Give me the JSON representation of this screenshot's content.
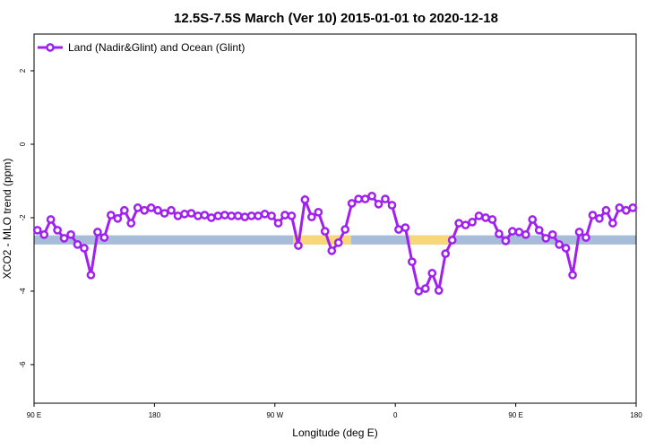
{
  "chart_data": {
    "type": "line",
    "title": "12.5S-7.5S March (Ver 10)   2015-01-01 to 2020-12-18",
    "x_label": "Longitude (deg E)",
    "y_label": "XCO2 - MLO trend (ppm)",
    "xlim": [
      90,
      540
    ],
    "ylim": [
      -7.05,
      3
    ],
    "xticks": [
      {
        "value": 90,
        "label": "90 E"
      },
      180,
      {
        "value": 270,
        "label": "90 W"
      },
      {
        "value": 360,
        "label": "0"
      },
      {
        "value": 450,
        "label": "90 E"
      },
      {
        "value": 540,
        "label": "180"
      }
    ],
    "yticks": [
      -6,
      -4,
      -2,
      0,
      2
    ],
    "legend_position": "top-left",
    "reference_band": {
      "range": [
        -2.48,
        -2.73
      ],
      "color": "#a7bcd8"
    },
    "highlight_ranges": {
      "color": "#f8d77a",
      "x": [
        [
          283.5,
          327
        ],
        [
          371,
          401
        ]
      ]
    },
    "series": [
      {
        "name": "Land (Nadir&Glint) and Ocean (Glint)",
        "color": "#a020f0",
        "x": [
          92.5,
          97.5,
          102.5,
          107.5,
          112.5,
          117.5,
          122.5,
          127.5,
          132.5,
          137.5,
          142.5,
          147.5,
          152.5,
          157.5,
          162.5,
          167.5,
          172.5,
          177.5,
          182.5,
          187.5,
          192.5,
          197.5,
          202.5,
          207.5,
          212.5,
          217.5,
          222.5,
          227.5,
          232.5,
          237.5,
          242.5,
          247.5,
          252.5,
          257.5,
          262.5,
          267.5,
          272.5,
          277.5,
          282.5,
          287.5,
          292.5,
          297.5,
          302.5,
          307.5,
          312.5,
          317.5,
          322.5,
          327.5,
          332.5,
          337.5,
          342.5,
          347.5,
          352.5,
          357.5,
          362.5,
          367.5,
          372.5,
          377.5,
          382.5,
          387.5,
          392.5,
          397.5,
          402.5,
          407.5,
          412.5,
          417.5,
          422.5,
          427.5,
          432.5,
          437.5,
          442.5,
          447.5,
          452.5,
          457.5,
          462.5,
          467.5,
          472.5,
          477.5,
          482.5,
          487.5,
          492.5,
          497.5,
          502.5,
          507.5,
          512.5,
          517.5,
          522.5,
          527.5,
          532.5,
          537.5
        ],
        "values": [
          -2.34,
          -2.46,
          -2.05,
          -2.34,
          -2.56,
          -2.46,
          -2.73,
          -2.83,
          -3.56,
          -2.39,
          -2.54,
          -1.93,
          -2.02,
          -1.8,
          -2.15,
          -1.73,
          -1.8,
          -1.73,
          -1.8,
          -1.88,
          -1.8,
          -1.95,
          -1.9,
          -1.88,
          -1.95,
          -1.93,
          -2.0,
          -1.95,
          -1.93,
          -1.95,
          -1.95,
          -1.98,
          -1.95,
          -1.95,
          -1.9,
          -1.95,
          -2.15,
          -1.93,
          -1.95,
          -2.76,
          -1.51,
          -1.98,
          -1.85,
          -2.37,
          -2.9,
          -2.68,
          -2.32,
          -1.61,
          -1.49,
          -1.49,
          -1.41,
          -1.63,
          -1.49,
          -1.66,
          -2.32,
          -2.27,
          -3.2,
          -4.0,
          -3.93,
          -3.51,
          -3.98,
          -2.98,
          -2.61,
          -2.15,
          -2.2,
          -2.12,
          -1.95,
          -2.0,
          -2.05,
          -2.44,
          -2.63,
          -2.37,
          -2.39,
          -2.46,
          -2.05,
          -2.34,
          -2.56,
          -2.46,
          -2.73,
          -2.83,
          -3.56,
          -2.39,
          -2.54,
          -1.93,
          -2.02,
          -1.8,
          -2.15,
          -1.73,
          -1.8,
          -1.73
        ]
      }
    ]
  }
}
